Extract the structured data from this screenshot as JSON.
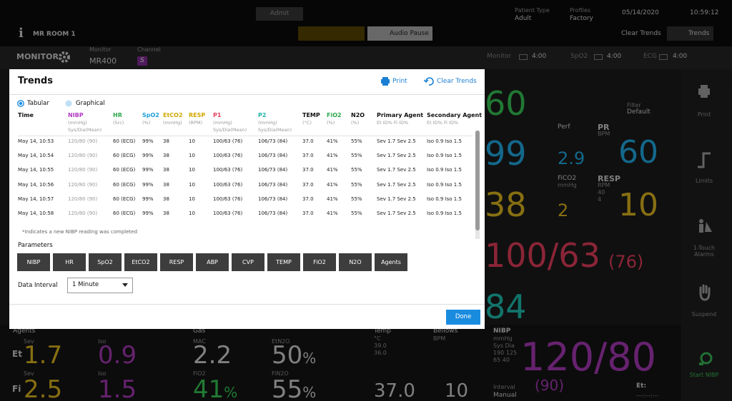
{
  "top_bar": {
    "admit": "Admit",
    "patient_type_label": "Patient Type",
    "patient_type": "Adult",
    "profiles_label": "Profiles",
    "profile": "Factory",
    "date": "05/14/2020",
    "time": "10:59:12",
    "info": "i",
    "room": "MR ROOM 1",
    "audio_pause": "Audio Pause",
    "clear_trends": "Clear Trends",
    "trends": "Trends"
  },
  "monitor_bar": {
    "title": "MONITOR",
    "monitor_label": "Monitor",
    "monitor": "MR400",
    "channel_label": "Channel",
    "channel": "S",
    "batteries": [
      {
        "label": "Monitor",
        "time": "4:00"
      },
      {
        "label": "SpO2",
        "time": "4:00"
      },
      {
        "label": "ECG",
        "time": "4:00"
      }
    ]
  },
  "trends_dialog": {
    "title": "Trends",
    "print": "Print",
    "clear_trends": "Clear Trends",
    "views": [
      "Tabular",
      "Graphical"
    ],
    "table": {
      "columns": [
        {
          "name": "Time",
          "unit": [],
          "color": "#111111"
        },
        {
          "name": "NIBP",
          "unit": [
            "(mmHg)",
            "Sys/Dia(Mean)"
          ],
          "color": "#b03cc0"
        },
        {
          "name": "HR",
          "unit": [
            "(Src)"
          ],
          "color": "#2aa84a"
        },
        {
          "name": "SpO2",
          "unit": [
            "(%)"
          ],
          "color": "#1a9fd8"
        },
        {
          "name": "EtCO2",
          "unit": [
            "(mmHg)"
          ],
          "color": "#d0a800"
        },
        {
          "name": "RESP",
          "unit": [
            "(RPM)"
          ],
          "color": "#d0a800"
        },
        {
          "name": "P1",
          "unit": [
            "(mmHg)",
            "Sys/Dia(Mean)"
          ],
          "color": "#e0405a"
        },
        {
          "name": "P2",
          "unit": [
            "(mmHg)",
            "Sys/Dia(Mean)"
          ],
          "color": "#1fb5a8"
        },
        {
          "name": "TEMP",
          "unit": [
            "(°C)"
          ],
          "color": "#111111"
        },
        {
          "name": "FiO2",
          "unit": [
            "(%)"
          ],
          "color": "#2aa84a"
        },
        {
          "name": "N2O",
          "unit": [
            "(%)"
          ],
          "color": "#111111"
        },
        {
          "name": "Primary Agent",
          "unit": [
            "Et ID% Fi ID%"
          ],
          "color": "#111111"
        },
        {
          "name": "Secondary Agent",
          "unit": [
            "Et ID% Fi ID%"
          ],
          "color": "#111111"
        }
      ],
      "rows": [
        [
          "May 14, 10:53",
          "120/80 (90)",
          "60 (ECG)",
          "99%",
          "38",
          "10",
          "100/63 (76)",
          "106/73 (84)",
          "37.0",
          "41%",
          "55%",
          "Sev 1.7 Sev 2.5",
          "Iso 0.9 Iso 1.5"
        ],
        [
          "May 14, 10:54",
          "120/80 (90)",
          "60 (ECG)",
          "99%",
          "38",
          "10",
          "100/63 (76)",
          "106/73 (84)",
          "37.0",
          "41%",
          "55%",
          "Sev 1.7 Sev 2.5",
          "Iso 0.9 Iso 1.5"
        ],
        [
          "May 14, 10:55",
          "120/80 (90)",
          "60 (ECG)",
          "99%",
          "38",
          "10",
          "100/63 (76)",
          "106/73 (84)",
          "37.0",
          "41%",
          "55%",
          "Sev 1.7 Sev 2.5",
          "Iso 0.9 Iso 1.5"
        ],
        [
          "May 14, 10:56",
          "120/80 (90)",
          "60 (ECG)",
          "99%",
          "38",
          "10",
          "100/63 (76)",
          "106/73 (84)",
          "37.0",
          "41%",
          "55%",
          "Sev 1.7 Sev 2.5",
          "Iso 0.9 Iso 1.5"
        ],
        [
          "May 14, 10:57",
          "120/80 (90)",
          "60 (ECG)",
          "99%",
          "38",
          "10",
          "100/63 (76)",
          "106/73 (84)",
          "37.0",
          "41%",
          "55%",
          "Sev 1.7 Sev 2.5",
          "Iso 0.9 Iso 1.5"
        ],
        [
          "May 14, 10:58",
          "120/80 (90)",
          "60 (ECG)",
          "99%",
          "38",
          "10",
          "100/63 (76)",
          "106/73 (84)",
          "37.0",
          "41%",
          "55%",
          "Sev 1.7 Sev 2.5",
          "Iso 0.9 Iso 1.5"
        ]
      ]
    },
    "footnote": "*Indicates a new NIBP reading was completed",
    "parameters_label": "Parameters",
    "parameters": [
      "NIBP",
      "HR",
      "SpO2",
      "EtCO2",
      "RESP",
      "ABP",
      "CVP",
      "TEMP",
      "FiO2",
      "N2O",
      "Agents"
    ],
    "data_interval_label": "Data Interval",
    "data_interval": "1 Minute",
    "done": "Done"
  },
  "vitals": {
    "hr": "60",
    "spo2": "99",
    "etco2": "38",
    "abp": "100/63",
    "abp_mean": "(76)",
    "cvp": "84",
    "perf_label": "Perf",
    "perf": "2.9",
    "pr_label": "PR",
    "pr_unit": "BPM",
    "pr": "60",
    "fico2_label": "FiCO2",
    "fico2_unit": "mmHg",
    "fico2": "2",
    "resp_label": "RESP",
    "resp_unit": "RPM",
    "resp_high": "40",
    "resp_low": "4",
    "resp": "10",
    "filter_label": "Filter",
    "filter": "Default"
  },
  "bottom": {
    "agents_label": "Agents",
    "et_label": "Et",
    "fi_label": "Fi",
    "sev_et_label": "Sev",
    "sev_et": "1.7",
    "iso_et_label": "Iso",
    "iso_et": "0.9",
    "sev_fi_label": "Sev",
    "sev_fi": "2.5",
    "iso_fi_label": "Iso",
    "iso_fi": "1.5",
    "gas_label": "Gas",
    "mac_label": "MAC",
    "mac": "2.2",
    "etn2o_label": "EtN2O",
    "etn2o": "50",
    "etn2o_unit": "%",
    "fio2_label": "FiO2",
    "fio2": "41",
    "fio2_unit": "%",
    "fin2o_label": "FiN2O",
    "fin2o": "55",
    "fin2o_unit": "%",
    "temp_label": "Temp",
    "temp_unit": "°C",
    "temp_high": "39.0",
    "temp_low": "36.0",
    "temp": "37.0",
    "bellows_label": "Bellows",
    "bellows_unit": "BPM",
    "bellows": "10",
    "nibp_label": "NIBP",
    "nibp_unit": "mmHg",
    "nibp_limit_head": "Sys Dia",
    "nibp_high": "190 125",
    "nibp_low": "65 40",
    "nibp": "120/80",
    "nibp_mean": "(90)",
    "interval_label": "Interval",
    "interval": "Manual",
    "et_time_label": "Et:",
    "et_time": "---:---:---"
  },
  "side_menu": [
    "Print",
    "Limits",
    "1-Touch Alarms",
    "Suspend",
    "Start NIBP"
  ]
}
